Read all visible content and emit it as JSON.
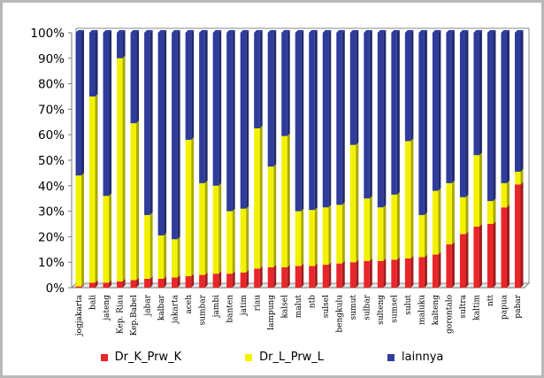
{
  "chart_data": {
    "type": "bar",
    "stacked": true,
    "percent_stacked": true,
    "categories": [
      "jogjakarta",
      "bali",
      "jateng",
      "Kep. Riau",
      "Kep.Babel",
      "jabar",
      "kalbar",
      "jakarta",
      "aceh",
      "sumbar",
      "jambi",
      "banten",
      "jatim",
      "riau",
      "lampung",
      "kalsel",
      "malut",
      "ntb",
      "sulsel",
      "bengkulu",
      "sumut",
      "sulbar",
      "sulteng",
      "sumsel",
      "sulut",
      "maluku",
      "kalteng",
      "gorontalo",
      "sultra",
      "kaltim",
      "ntt",
      "papua",
      "pabar"
    ],
    "series": [
      {
        "name": "Dr_K_Prw_K",
        "color": "#e8262a",
        "values": [
          0.5,
          2,
          2,
          2.5,
          3,
          3.5,
          3.5,
          4,
          4.5,
          5,
          5.5,
          5.5,
          6,
          7.5,
          8,
          8,
          8.5,
          8.5,
          9,
          9.5,
          10,
          10.5,
          10.5,
          11,
          11.5,
          12,
          13,
          17,
          21,
          24,
          25,
          31.5,
          40.5
        ]
      },
      {
        "name": "Dr_L_Prw_L",
        "color": "#f2f200",
        "values": [
          43.5,
          73,
          34,
          87.5,
          61.5,
          25,
          17,
          15,
          53.5,
          36,
          34.5,
          24.5,
          25,
          55,
          39.5,
          51.5,
          21.5,
          22,
          22.5,
          23,
          46,
          24.5,
          21,
          25.5,
          46,
          16.5,
          25,
          24,
          14.5,
          28,
          9,
          9.5,
          5
        ]
      },
      {
        "name": "lainnya",
        "color": "#2f3c9c",
        "values": [
          56,
          25,
          64,
          10,
          35.5,
          71.5,
          79.5,
          81,
          42,
          59,
          60,
          70,
          69,
          37.5,
          52.5,
          40.5,
          70,
          69.5,
          68.5,
          67.5,
          44,
          65,
          68.5,
          63.5,
          42.5,
          71.5,
          62,
          59,
          64.5,
          48,
          66,
          59,
          54.5
        ]
      }
    ],
    "y_ticks": [
      "0%",
      "10%",
      "20%",
      "30%",
      "40%",
      "50%",
      "60%",
      "70%",
      "80%",
      "90%",
      "100%"
    ],
    "ylim": [
      0,
      100
    ],
    "grid": false,
    "legend_position": "bottom"
  }
}
